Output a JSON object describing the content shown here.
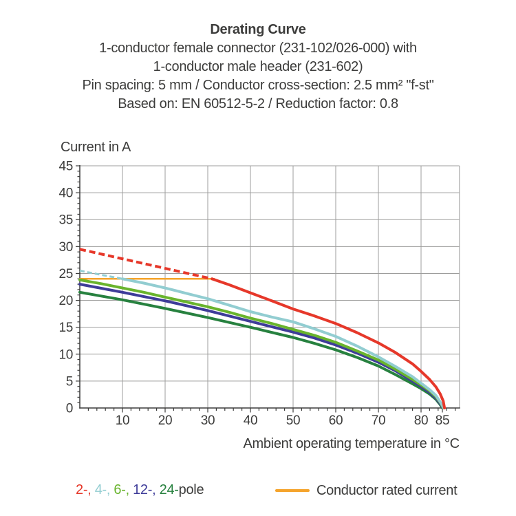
{
  "header": {
    "title": "Derating Curve",
    "subtitle_lines": [
      "1-conductor female connector (231-102/026-000) with",
      "1-conductor male header (231-602)",
      "Pin spacing: 5 mm / Conductor cross-section: 2.5 mm² \"f-st\"",
      "Based on: EN 60512-5-2 / Reduction factor: 0.8"
    ]
  },
  "chart_data": {
    "type": "line",
    "title": "Derating Curve",
    "xlabel": "Ambient operating temperature in °C",
    "ylabel": "Current in A",
    "xlim": [
      0,
      89
    ],
    "ylim": [
      0,
      45
    ],
    "x_major_ticks": [
      10,
      20,
      30,
      40,
      50,
      60,
      70,
      80,
      85
    ],
    "x_minor_tick_step": 2,
    "y_major_ticks": [
      0,
      5,
      10,
      15,
      20,
      25,
      30,
      35,
      40,
      45
    ],
    "y_minor_tick_step": 1,
    "grid": true,
    "legend_position": "bottom",
    "grid_color": "#9d9d9c",
    "axis_color": "#3c3c3b",
    "series": [
      {
        "name": "2-pole",
        "color": "#e6382a",
        "width": 4,
        "segments": [
          {
            "style": "dashed",
            "dash": "9 5",
            "points": [
              [
                0,
                29.5
              ],
              [
                31,
                24.0
              ]
            ]
          },
          {
            "style": "solid",
            "points": [
              [
                31,
                24.0
              ],
              [
                35,
                22.9
              ],
              [
                40,
                21.4
              ],
              [
                45,
                19.9
              ],
              [
                50,
                18.4
              ],
              [
                55,
                17.1
              ],
              [
                60,
                15.7
              ],
              [
                65,
                14.0
              ],
              [
                70,
                12.1
              ],
              [
                74,
                10.3
              ],
              [
                78,
                8.2
              ],
              [
                80,
                6.8
              ],
              [
                82,
                5.3
              ],
              [
                83.5,
                3.9
              ],
              [
                84.5,
                2.6
              ],
              [
                85.2,
                1.3
              ],
              [
                85.5,
                0
              ]
            ]
          }
        ]
      },
      {
        "name": "4-pole",
        "color": "#92cdd1",
        "width": 4,
        "segments": [
          {
            "style": "dashed",
            "dash": "7 4",
            "width": 3,
            "points": [
              [
                0,
                25.5
              ],
              [
                10,
                24.0
              ]
            ]
          },
          {
            "style": "solid",
            "points": [
              [
                10,
                24.0
              ],
              [
                15,
                23.2
              ],
              [
                20,
                22.3
              ],
              [
                25,
                21.3
              ],
              [
                30,
                20.3
              ],
              [
                35,
                19.1
              ],
              [
                40,
                17.9
              ],
              [
                45,
                16.9
              ],
              [
                50,
                16.0
              ],
              [
                55,
                14.7
              ],
              [
                60,
                13.3
              ],
              [
                65,
                11.5
              ],
              [
                70,
                9.5
              ],
              [
                74,
                7.7
              ],
              [
                78,
                5.8
              ],
              [
                80,
                4.6
              ],
              [
                82,
                3.4
              ],
              [
                83.5,
                2.3
              ],
              [
                84.6,
                1.0
              ],
              [
                85.3,
                0
              ]
            ]
          }
        ]
      },
      {
        "name": "6-pole",
        "color": "#69b42d",
        "width": 4,
        "segments": [
          {
            "style": "solid",
            "points": [
              [
                0,
                23.8
              ],
              [
                5,
                23.1
              ],
              [
                10,
                22.3
              ],
              [
                15,
                21.5
              ],
              [
                20,
                20.6
              ],
              [
                25,
                19.7
              ],
              [
                30,
                18.8
              ],
              [
                35,
                17.8
              ],
              [
                40,
                16.7
              ],
              [
                45,
                15.7
              ],
              [
                50,
                14.6
              ],
              [
                55,
                13.5
              ],
              [
                60,
                12.2
              ],
              [
                65,
                10.6
              ],
              [
                70,
                8.9
              ],
              [
                74,
                7.2
              ],
              [
                78,
                5.3
              ],
              [
                80,
                4.3
              ],
              [
                82,
                3.2
              ],
              [
                83.5,
                2.1
              ],
              [
                84.6,
                0.9
              ],
              [
                85.2,
                0
              ]
            ]
          }
        ]
      },
      {
        "name": "12-pole",
        "color": "#3e3c99",
        "width": 4,
        "segments": [
          {
            "style": "solid",
            "points": [
              [
                0,
                23.0
              ],
              [
                10,
                21.5
              ],
              [
                20,
                19.9
              ],
              [
                30,
                18.1
              ],
              [
                40,
                16.1
              ],
              [
                50,
                14.1
              ],
              [
                55,
                13.0
              ],
              [
                60,
                11.7
              ],
              [
                65,
                10.2
              ],
              [
                70,
                8.5
              ],
              [
                74,
                6.9
              ],
              [
                78,
                5.0
              ],
              [
                80,
                4.0
              ],
              [
                82,
                2.9
              ],
              [
                83.5,
                1.8
              ],
              [
                84.5,
                0.8
              ],
              [
                85.1,
                0
              ]
            ]
          }
        ]
      },
      {
        "name": "24-pole",
        "color": "#27813f",
        "width": 4,
        "segments": [
          {
            "style": "solid",
            "points": [
              [
                0,
                21.5
              ],
              [
                10,
                20.1
              ],
              [
                20,
                18.5
              ],
              [
                30,
                16.8
              ],
              [
                40,
                15.0
              ],
              [
                50,
                13.1
              ],
              [
                55,
                12.0
              ],
              [
                60,
                10.8
              ],
              [
                65,
                9.4
              ],
              [
                70,
                7.8
              ],
              [
                74,
                6.2
              ],
              [
                78,
                4.5
              ],
              [
                80,
                3.6
              ],
              [
                82,
                2.6
              ],
              [
                83.5,
                1.6
              ],
              [
                84.4,
                0.7
              ],
              [
                85,
                0
              ]
            ]
          }
        ]
      },
      {
        "name": "Conductor rated current",
        "color": "#f5a42c",
        "width": 2.5,
        "segments": [
          {
            "style": "solid",
            "points": [
              [
                0,
                24
              ],
              [
                31.5,
                24
              ]
            ]
          }
        ]
      }
    ]
  },
  "legend": {
    "pole_parts": [
      {
        "text": "2-, ",
        "color": "#e6382a"
      },
      {
        "text": "4-, ",
        "color": "#92cdd1"
      },
      {
        "text": "6-, ",
        "color": "#69b42d"
      },
      {
        "text": "12-, ",
        "color": "#3e3c99"
      },
      {
        "text": "24-",
        "color": "#27813f"
      },
      {
        "text": "pole",
        "color": "#3c3c3b"
      }
    ],
    "rated_current_label": "Conductor rated current",
    "rated_current_color": "#f5a42c"
  }
}
